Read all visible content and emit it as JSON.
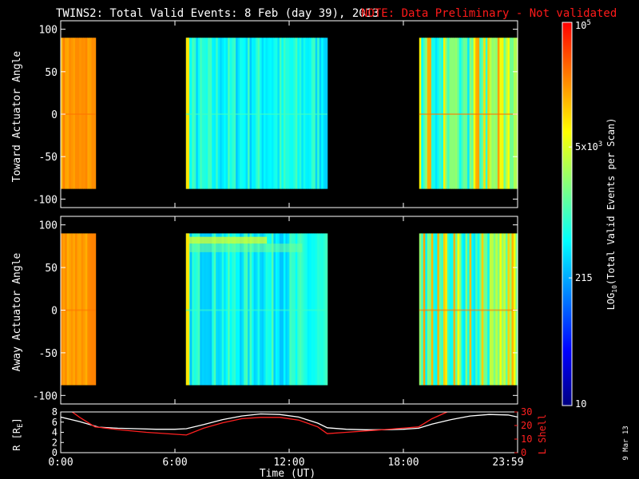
{
  "header": {
    "title": "TWINS2: Total Valid Events:  8 Feb (day  39), 2013",
    "note": "NOTE: Data Preliminary - Not validated",
    "note_color": "#ff1a1a"
  },
  "footer": {
    "run_date": "9 Mar 13"
  },
  "chart_data": [
    {
      "type": "heatmap",
      "panel": "toward",
      "ylabel": "Toward Actuator Angle",
      "ylim": [
        -110,
        110
      ],
      "yticks": [
        "100",
        "50",
        "0",
        "-50",
        "-100"
      ],
      "data_angle_range": [
        -88,
        90
      ],
      "xlim_hours": [
        0,
        24
      ],
      "segments": [
        {
          "start": "0:00",
          "end": "1:50",
          "start_h": 0.0,
          "end_h": 1.83,
          "level": "high"
        },
        {
          "start": "6:35",
          "end": "14:00",
          "start_h": 6.58,
          "end_h": 14.0,
          "level": "low"
        },
        {
          "start": "18:50",
          "end": "23:59",
          "start_h": 18.83,
          "end_h": 24.0,
          "level": "mixed"
        }
      ]
    },
    {
      "type": "heatmap",
      "panel": "away",
      "ylabel": "Away Actuator Angle",
      "ylim": [
        -110,
        110
      ],
      "yticks": [
        "100",
        "50",
        "0",
        "-50",
        "-100"
      ],
      "data_angle_range": [
        -88,
        90
      ],
      "xlim_hours": [
        0,
        24
      ],
      "segments": [
        {
          "start": "0:00",
          "end": "1:50",
          "start_h": 0.0,
          "end_h": 1.83,
          "level": "high"
        },
        {
          "start": "6:35",
          "end": "14:00",
          "start_h": 6.58,
          "end_h": 14.0,
          "level": "low"
        },
        {
          "start": "18:50",
          "end": "23:59",
          "start_h": 18.83,
          "end_h": 24.0,
          "level": "mixed"
        }
      ]
    },
    {
      "type": "line",
      "panel": "orbit",
      "xlabel": "Time (UT)",
      "xticks": [
        "0:00",
        "6:00",
        "12:00",
        "18:00",
        "23:59"
      ],
      "ylabel_left": "R [R",
      "ylabel_left_sub": "E",
      "ylabel_left_end": "]",
      "ylim_left": [
        0,
        8
      ],
      "yticks_left": [
        "8",
        "6",
        "4",
        "2",
        "0"
      ],
      "ylabel_right": "L Shell",
      "ylim_right": [
        0,
        30
      ],
      "yticks_right": [
        "30",
        "20",
        "10",
        "0"
      ],
      "series": [
        {
          "axis": "left",
          "color": "#ffffff",
          "x": [
            0,
            1,
            2,
            3,
            4,
            5,
            6,
            6.6,
            7.5,
            8.5,
            9.5,
            10.5,
            11.5,
            12.5,
            13.5,
            14,
            15,
            16,
            17,
            18,
            18.8,
            19.5,
            20.5,
            21.5,
            22.5,
            23.5,
            24
          ],
          "y": [
            7.0,
            6.1,
            5.0,
            4.8,
            4.7,
            4.6,
            4.6,
            4.7,
            5.5,
            6.5,
            7.2,
            7.6,
            7.5,
            7.0,
            5.8,
            4.9,
            4.6,
            4.5,
            4.5,
            4.6,
            4.8,
            5.6,
            6.5,
            7.2,
            7.5,
            7.4,
            7.0
          ]
        },
        {
          "axis": "right",
          "color": "#ff2020",
          "x": [
            0.6,
            1.0,
            1.8,
            3.0,
            4.5,
            6.6,
            7.5,
            8.5,
            9.5,
            10.5,
            11.5,
            12.5,
            13.5,
            14.0,
            15,
            16,
            17,
            18.8,
            19.5,
            20.3
          ],
          "y": [
            30,
            26,
            19,
            17,
            15,
            13,
            18,
            22,
            25,
            26,
            26,
            24,
            19,
            14,
            15,
            16,
            17,
            19,
            25,
            30
          ]
        }
      ]
    }
  ],
  "colorbar": {
    "label": "LOG",
    "label_sub": "10",
    "label_end": "(Total Valid Events per Scan)",
    "scale": "log",
    "range": [
      10,
      100000
    ],
    "ticks": [
      {
        "value": 100000,
        "base": "10",
        "sup": "5"
      },
      {
        "value": 5000,
        "base": "5x10",
        "sup": "3"
      },
      {
        "value": 215,
        "base": "215",
        "sup": ""
      },
      {
        "value": 10,
        "base": "10",
        "sup": ""
      }
    ],
    "colors": [
      "#000080",
      "#0000ff",
      "#0080ff",
      "#00ffff",
      "#80ff80",
      "#ffff00",
      "#ff8000",
      "#ff0000"
    ]
  }
}
